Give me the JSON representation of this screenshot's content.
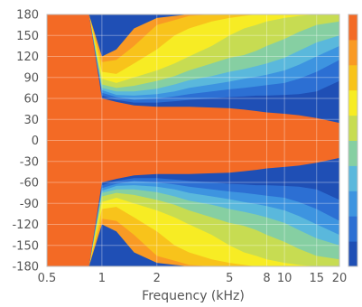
{
  "chart_data": {
    "type": "heatmap",
    "title": "",
    "xlabel": "Frequency (kHz)",
    "ylabel": "",
    "x_scale": "log",
    "xlim": [
      0.5,
      20
    ],
    "ylim": [
      -180,
      180
    ],
    "x_ticks": [
      0.5,
      1,
      2,
      5,
      8,
      10,
      15,
      20
    ],
    "x_tick_labels": [
      "0.5",
      "1",
      "2",
      "5",
      "8",
      "10",
      "15",
      "20"
    ],
    "y_ticks": [
      180,
      150,
      120,
      90,
      60,
      30,
      0,
      -30,
      -60,
      -90,
      -120,
      -150,
      -180
    ],
    "y_tick_labels": [
      "180",
      "150",
      "120",
      "90",
      "60",
      "30",
      "0",
      "-30",
      "-60",
      "-90",
      "-120",
      "-150",
      "-180"
    ],
    "grid": true,
    "colorbar": true,
    "color_levels": [
      "#1f4fb5",
      "#2c6fd3",
      "#3d94e0",
      "#5ab8dc",
      "#86cfa2",
      "#c7dc52",
      "#f7ec24",
      "#f8c31b",
      "#f99a24",
      "#f36a25"
    ],
    "contour_boundaries": {
      "frequencies_khz": [
        0.5,
        0.7,
        0.85,
        1.0,
        1.2,
        1.5,
        2.0,
        2.5,
        3.0,
        4.0,
        5.0,
        6.0,
        7.0,
        8.0,
        10.0,
        12.0,
        15.0,
        20.0
      ],
      "levels": [
        {
          "color": "#f99a24",
          "angle_deg": [
            180,
            180,
            180,
            120,
            130,
            160,
            175,
            178,
            180,
            180,
            180,
            180,
            180,
            180,
            180,
            180,
            180,
            180
          ]
        },
        {
          "color": "#f8c31b",
          "angle_deg": [
            180,
            180,
            180,
            112,
            115,
            135,
            165,
            172,
            178,
            180,
            180,
            180,
            180,
            180,
            180,
            180,
            180,
            180
          ]
        },
        {
          "color": "#f7ec24",
          "angle_deg": [
            180,
            180,
            180,
            98,
            95,
            110,
            130,
            150,
            160,
            170,
            175,
            178,
            180,
            180,
            180,
            180,
            180,
            180
          ]
        },
        {
          "color": "#c7dc52",
          "angle_deg": [
            180,
            180,
            180,
            88,
            82,
            90,
            100,
            110,
            120,
            135,
            150,
            160,
            165,
            170,
            175,
            178,
            180,
            180
          ]
        },
        {
          "color": "#86cfa2",
          "angle_deg": [
            180,
            180,
            180,
            80,
            75,
            78,
            85,
            92,
            100,
            110,
            118,
            122,
            128,
            135,
            145,
            155,
            165,
            170
          ]
        },
        {
          "color": "#5ab8dc",
          "angle_deg": [
            180,
            180,
            180,
            75,
            70,
            70,
            74,
            80,
            86,
            92,
            98,
            102,
            106,
            110,
            118,
            128,
            140,
            150
          ]
        },
        {
          "color": "#3d94e0",
          "angle_deg": [
            180,
            180,
            180,
            72,
            65,
            64,
            66,
            70,
            75,
            80,
            84,
            88,
            91,
            94,
            100,
            108,
            120,
            135
          ]
        },
        {
          "color": "#2c6fd3",
          "angle_deg": [
            180,
            180,
            180,
            68,
            62,
            58,
            60,
            63,
            66,
            70,
            73,
            75,
            77,
            79,
            82,
            88,
            98,
            115
          ]
        },
        {
          "color": "#1f4fb5",
          "angle_deg": [
            180,
            180,
            180,
            64,
            58,
            54,
            54,
            56,
            58,
            60,
            62,
            63,
            64,
            64,
            65,
            66,
            70,
            85
          ]
        },
        {
          "color": "#f36a25",
          "angle_deg": [
            180,
            180,
            180,
            60,
            55,
            50,
            48,
            48,
            48,
            47,
            46,
            44,
            42,
            40,
            38,
            36,
            32,
            25
          ]
        }
      ]
    }
  }
}
